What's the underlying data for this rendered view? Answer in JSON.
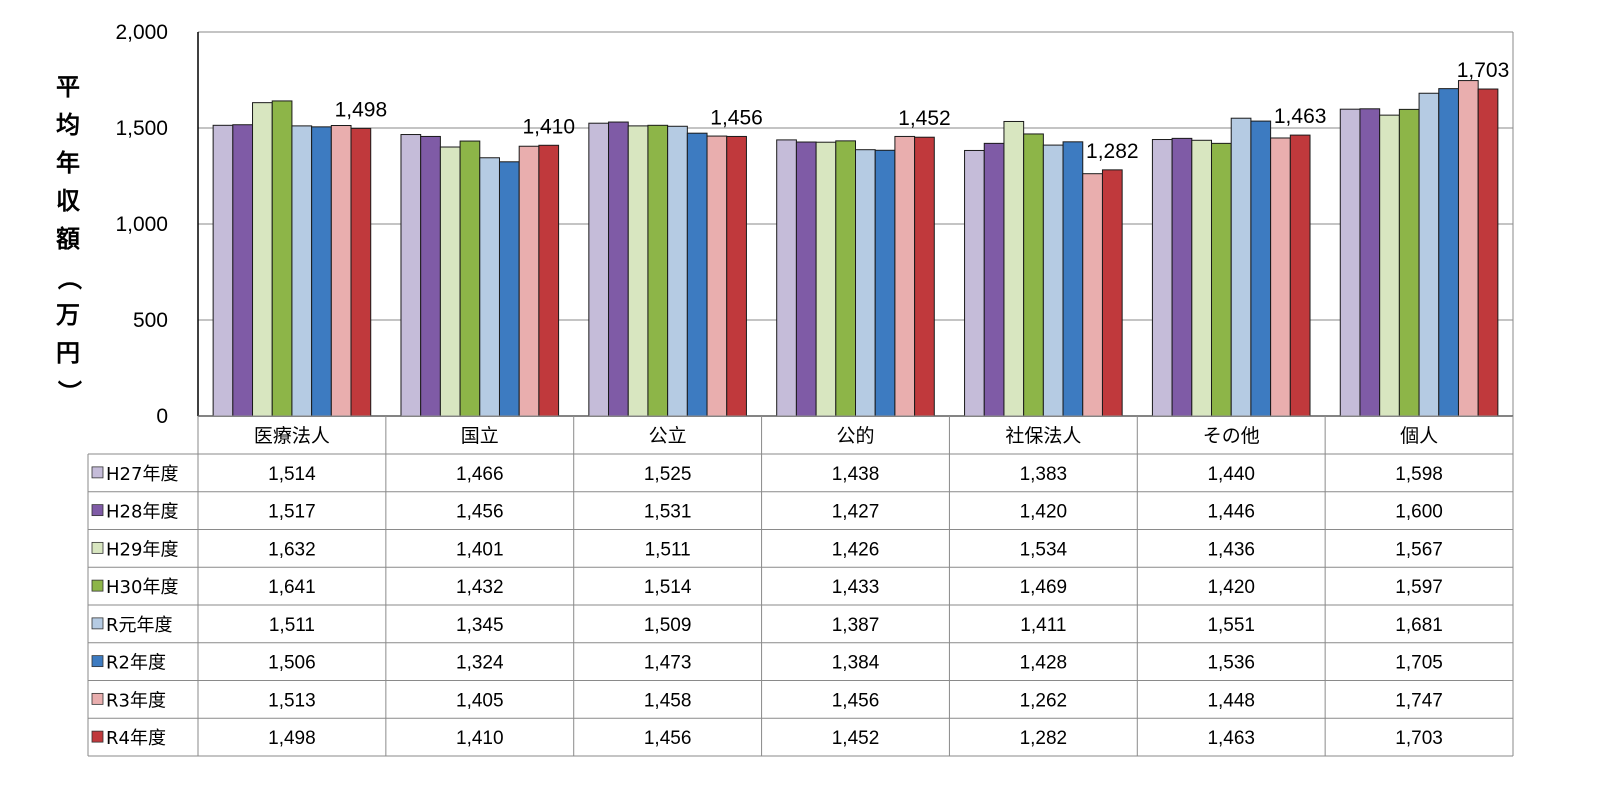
{
  "chart_data": {
    "type": "bar",
    "ylabel": "平均年収額（万円）",
    "ylim": [
      0,
      2000
    ],
    "yticks": [
      "0",
      "500",
      "1,000",
      "1,500",
      "2,000"
    ],
    "grid": true,
    "categories": [
      "医療法人",
      "国立",
      "公立",
      "公的",
      "社保法人",
      "その他",
      "個人"
    ],
    "series": [
      {
        "name": "H27年度",
        "color": "#C5BCD9",
        "values": [
          1514,
          1466,
          1525,
          1438,
          1383,
          1440,
          1598
        ],
        "labels": [
          "1,514",
          "1,466",
          "1,525",
          "1,438",
          "1,383",
          "1,440",
          "1,598"
        ]
      },
      {
        "name": "H28年度",
        "color": "#7F5BA6",
        "values": [
          1517,
          1456,
          1531,
          1427,
          1420,
          1446,
          1600
        ],
        "labels": [
          "1,517",
          "1,456",
          "1,531",
          "1,427",
          "1,420",
          "1,446",
          "1,600"
        ]
      },
      {
        "name": "H29年度",
        "color": "#D8E6C0",
        "values": [
          1632,
          1401,
          1511,
          1426,
          1534,
          1436,
          1567
        ],
        "labels": [
          "1,632",
          "1,401",
          "1,511",
          "1,426",
          "1,534",
          "1,436",
          "1,567"
        ]
      },
      {
        "name": "H30年度",
        "color": "#8DB548",
        "values": [
          1641,
          1432,
          1514,
          1433,
          1469,
          1420,
          1597
        ],
        "labels": [
          "1,641",
          "1,432",
          "1,514",
          "1,433",
          "1,469",
          "1,420",
          "1,597"
        ]
      },
      {
        "name": "R元年度",
        "color": "#B5CBE3",
        "values": [
          1511,
          1345,
          1509,
          1387,
          1411,
          1551,
          1681
        ],
        "labels": [
          "1,511",
          "1,345",
          "1,509",
          "1,387",
          "1,411",
          "1,551",
          "1,681"
        ]
      },
      {
        "name": "R2年度",
        "color": "#3D7BC1",
        "values": [
          1506,
          1324,
          1473,
          1384,
          1428,
          1536,
          1705
        ],
        "labels": [
          "1,506",
          "1,324",
          "1,473",
          "1,384",
          "1,428",
          "1,536",
          "1,705"
        ]
      },
      {
        "name": "R3年度",
        "color": "#E9AEAE",
        "values": [
          1513,
          1405,
          1458,
          1456,
          1262,
          1448,
          1747
        ],
        "labels": [
          "1,513",
          "1,405",
          "1,458",
          "1,456",
          "1,262",
          "1,448",
          "1,747"
        ]
      },
      {
        "name": "R4年度",
        "color": "#C0393C",
        "values": [
          1498,
          1410,
          1456,
          1452,
          1282,
          1463,
          1703
        ],
        "labels": [
          "1,498",
          "1,410",
          "1,456",
          "1,452",
          "1,282",
          "1,463",
          "1,703"
        ]
      }
    ],
    "data_labels_series": "R4年度",
    "data_labels": [
      "1,498",
      "1,410",
      "1,456",
      "1,452",
      "1,282",
      "1,463",
      "1,703"
    ]
  }
}
